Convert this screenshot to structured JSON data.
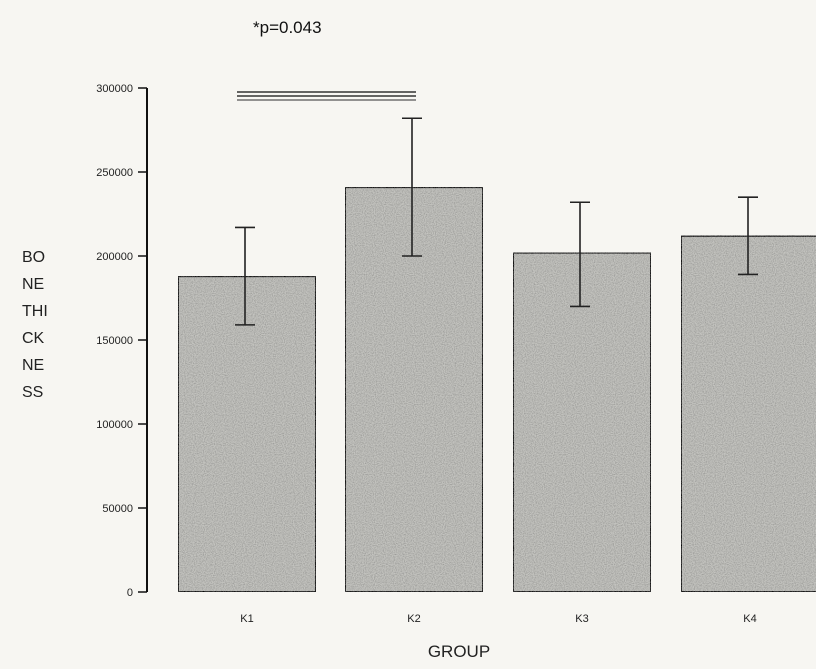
{
  "chart_data": {
    "type": "bar",
    "annotation": "*p=0.043",
    "categories": [
      "K1",
      "K2",
      "K3",
      "K4"
    ],
    "values": [
      188000,
      241000,
      202000,
      212000
    ],
    "error_upper": [
      217000,
      282000,
      232000,
      235000
    ],
    "error_lower": [
      159000,
      200000,
      170000,
      189000
    ],
    "significance": {
      "from": "K1",
      "to": "K2",
      "label": "*p=0.043"
    },
    "xlabel": "GROUP",
    "ylabel": "BONE THICKNESS",
    "ylabel_lines": [
      "BO",
      "NE",
      "THI",
      "CK",
      "NE",
      "SS"
    ],
    "ylim": [
      0,
      300000
    ],
    "yticks": [
      "0",
      "50000",
      "100000",
      "150000",
      "200000",
      "250000",
      "300000"
    ],
    "ytick_values": [
      0,
      50000,
      100000,
      150000,
      200000,
      250000,
      300000
    ],
    "grid": false,
    "colors": {
      "bar_fill": "#c4c4c0",
      "bar_stroke": "#111111",
      "axis": "#111111",
      "background": "#f7f6f2"
    }
  }
}
